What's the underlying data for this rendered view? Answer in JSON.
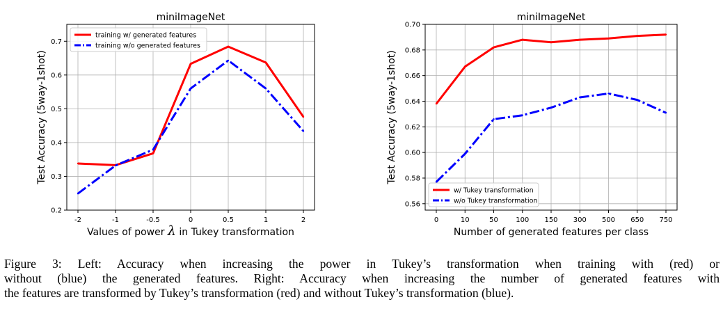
{
  "chart_data": [
    {
      "type": "line",
      "title": "miniImageNet",
      "xlabel_prefix": "Values of power ",
      "xlabel_symbol": "λ",
      "xlabel_suffix": " in Tukey transformation",
      "ylabel": "Test Accuracy (5way-1shot)",
      "categories": [
        "-2",
        "-1",
        "-0.5",
        "0",
        "0.5",
        "1",
        "2"
      ],
      "ylim": [
        0.2,
        0.75
      ],
      "yticks": [
        0.2,
        0.3,
        0.4,
        0.5,
        0.6,
        0.7
      ],
      "ytick_labels": [
        "0.2",
        "0.3",
        "0.4",
        "0.5",
        "0.6",
        "0.7"
      ],
      "grid": true,
      "legend_position": "top-left",
      "series": [
        {
          "name": "training w/ generated features",
          "color": "#ff0000",
          "style": "solid",
          "values": [
            0.338,
            0.333,
            0.368,
            0.633,
            0.684,
            0.637,
            0.476
          ]
        },
        {
          "name": "training w/o generated features",
          "color": "#0000ff",
          "style": "dashdot",
          "values": [
            0.249,
            0.332,
            0.379,
            0.56,
            0.643,
            0.56,
            0.434
          ]
        }
      ]
    },
    {
      "type": "line",
      "title": "miniImageNet",
      "xlabel": "Number of generated features per class",
      "ylabel": "Test Accuracy (5way-1shot)",
      "categories": [
        "0",
        "10",
        "50",
        "100",
        "150",
        "300",
        "500",
        "650",
        "750"
      ],
      "ylim": [
        0.555,
        0.7
      ],
      "yticks": [
        0.56,
        0.58,
        0.6,
        0.62,
        0.64,
        0.66,
        0.68,
        0.7
      ],
      "ytick_labels": [
        "0.56",
        "0.58",
        "0.60",
        "0.62",
        "0.64",
        "0.66",
        "0.68",
        "0.70"
      ],
      "grid": true,
      "legend_position": "bottom-left",
      "series": [
        {
          "name": "w/ Tukey transformation",
          "color": "#ff0000",
          "style": "solid",
          "values": [
            0.638,
            0.667,
            0.682,
            0.688,
            0.686,
            0.688,
            0.689,
            0.691,
            0.692
          ]
        },
        {
          "name": "w/o Tukey transformation",
          "color": "#0000ff",
          "style": "dashdot",
          "values": [
            0.577,
            0.599,
            0.626,
            0.629,
            0.635,
            0.643,
            0.646,
            0.641,
            0.631
          ]
        }
      ]
    }
  ],
  "caption": {
    "lines": [
      "Figure 3: Left: Accuracy when increasing the power in Tukey’s transformation when training with (red) or",
      "without (blue) the generated features. Right: Accuracy when increasing the number of generated features with",
      "the features are transformed by Tukey’s transformation (red) and without Tukey’s transformation (blue)."
    ]
  }
}
